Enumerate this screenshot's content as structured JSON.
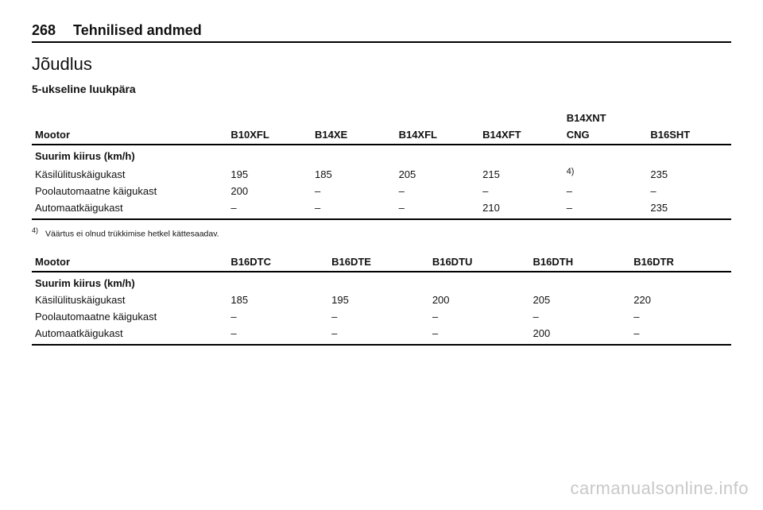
{
  "page": {
    "number": "268",
    "section": "Tehnilised andmed",
    "title": "Jõudlus",
    "subtitle": "5-ukseline luukpära"
  },
  "table1": {
    "headers": {
      "label": "Mootor",
      "c1": "B10XFL",
      "c2": "B14XE",
      "c3": "B14XFL",
      "c4": "B14XFT",
      "c5_top": "B14XNT",
      "c5_bottom": "CNG",
      "c6": "B16SHT"
    },
    "subheader": "Suurim kiirus (km/h)",
    "rows": [
      {
        "label": "Käsilülituskäigukast",
        "c1": "195",
        "c2": "185",
        "c3": "205",
        "c4": "215",
        "c5": "4)",
        "c6": "235"
      },
      {
        "label": "Poolautomaatne käigukast",
        "c1": "200",
        "c2": "–",
        "c3": "–",
        "c4": "–",
        "c5": "–",
        "c6": "–"
      },
      {
        "label": "Automaatkäigukast",
        "c1": "–",
        "c2": "–",
        "c3": "–",
        "c4": "210",
        "c5": "–",
        "c6": "235"
      }
    ]
  },
  "footnote": {
    "marker": "4)",
    "text": "Väärtus ei olnud trükkimise hetkel kättesaadav."
  },
  "table2": {
    "headers": {
      "label": "Mootor",
      "c1": "B16DTC",
      "c2": "B16DTE",
      "c3": "B16DTU",
      "c4": "B16DTH",
      "c5": "B16DTR"
    },
    "subheader": "Suurim kiirus (km/h)",
    "rows": [
      {
        "label": "Käsilülituskäigukast",
        "c1": "185",
        "c2": "195",
        "c3": "200",
        "c4": "205",
        "c5": "220"
      },
      {
        "label": "Poolautomaatne käigukast",
        "c1": "–",
        "c2": "–",
        "c3": "–",
        "c4": "–",
        "c5": "–"
      },
      {
        "label": "Automaatkäigukast",
        "c1": "–",
        "c2": "–",
        "c3": "–",
        "c4": "200",
        "c5": "–"
      }
    ]
  },
  "watermark": "carmanualsonline.info"
}
